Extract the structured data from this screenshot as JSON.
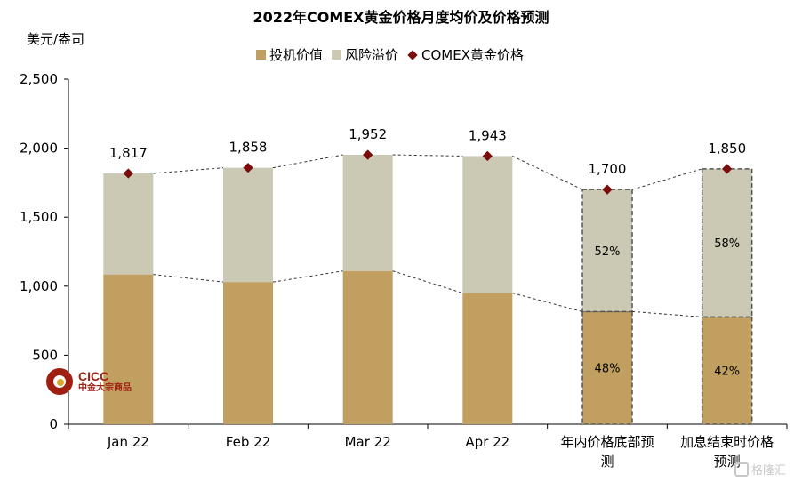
{
  "colors": {
    "investment": "#c09f61",
    "risk_premium": "#cbc8b3",
    "price_marker": "#7a0c0c",
    "logo": "#a01f10",
    "logo_dot": "#d9a72b"
  },
  "logo": {
    "name": "CICC",
    "subtitle": "中金大宗商品"
  },
  "watermark": {
    "text": "格隆汇",
    "icon": "watermark-logo-icon"
  },
  "chart_data": {
    "type": "bar",
    "title": "2022年COMEX黄金价格月度均价及价格预测",
    "ylabel": "美元/盎司",
    "ylim": [
      0,
      2500
    ],
    "yticks": [
      0,
      500,
      1000,
      1500,
      2000,
      2500
    ],
    "ytick_labels": [
      "0",
      "500",
      "1,000",
      "1,500",
      "2,000",
      "2,500"
    ],
    "grid": false,
    "legend_position": "top-center",
    "categories": [
      "Jan 22",
      "Feb 22",
      "Mar 22",
      "Apr 22",
      "年内价格底部预测",
      "加息结束时价格预测"
    ],
    "category_lines": [
      [
        "Jan 22"
      ],
      [
        "Feb 22"
      ],
      [
        "Mar 22"
      ],
      [
        "Apr 22"
      ],
      [
        "年内价格底部预",
        "测"
      ],
      [
        "加息结束时价格",
        "预测"
      ]
    ],
    "forecast": [
      false,
      false,
      false,
      false,
      true,
      true
    ],
    "series": [
      {
        "name": "投机价值",
        "key": "investment",
        "stacked": true,
        "values": [
          1085,
          1030,
          1110,
          950,
          816,
          777
        ]
      },
      {
        "name": "风险溢价",
        "key": "risk_premium",
        "stacked": true,
        "values": [
          732,
          828,
          842,
          993,
          884,
          1073
        ]
      },
      {
        "name": "COMEX黄金价格",
        "key": "price",
        "marker": "diamond",
        "values": [
          1817,
          1858,
          1952,
          1943,
          1700,
          1850
        ]
      }
    ],
    "price_labels": [
      "1,817",
      "1,858",
      "1,952",
      "1,943",
      "1,700",
      "1,850"
    ],
    "segment_labels": {
      "investment": [
        "",
        "",
        "",
        "",
        "48%",
        "42%"
      ],
      "risk_premium": [
        "",
        "",
        "",
        "",
        "52%",
        "58%"
      ]
    }
  }
}
